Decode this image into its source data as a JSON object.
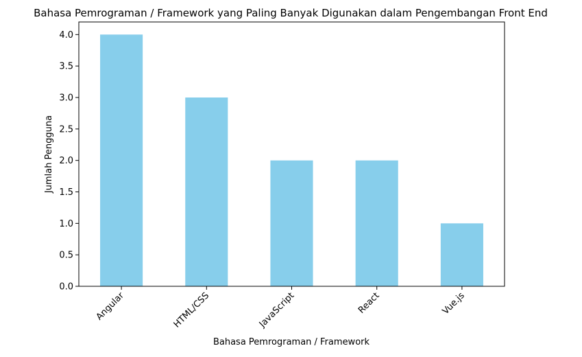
{
  "chart_data": {
    "type": "bar",
    "title": "Bahasa Pemrograman / Framework yang Paling Banyak Digunakan dalam Pengembangan Front End",
    "xlabel": "Bahasa Pemrograman / Framework",
    "ylabel": "Jumlah Pengguna",
    "categories": [
      "Angular",
      "HTML/CSS",
      "JavaScript",
      "React",
      "Vue.js"
    ],
    "values": [
      4,
      3,
      2,
      2,
      1
    ],
    "ylim": [
      0,
      4.2
    ],
    "yticks": [
      0.0,
      0.5,
      1.0,
      1.5,
      2.0,
      2.5,
      3.0,
      3.5,
      4.0
    ],
    "ytick_labels": [
      "0.0",
      "0.5",
      "1.0",
      "1.5",
      "2.0",
      "2.5",
      "3.0",
      "3.5",
      "4.0"
    ],
    "xtick_rotation": 45,
    "grid": false,
    "legend": "none",
    "bar_color": "#87ceeb"
  }
}
